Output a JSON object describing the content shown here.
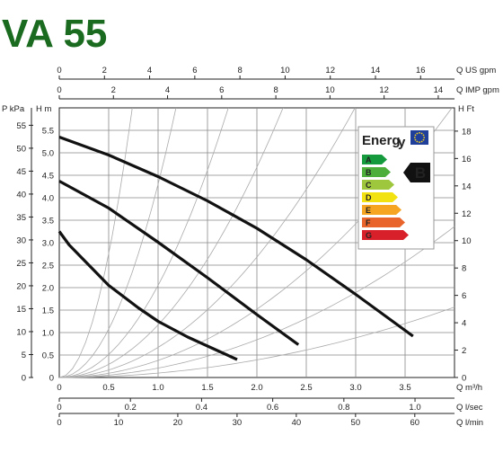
{
  "title": "VA 55",
  "colors": {
    "title": "#1a6b1f",
    "curve": "#111111",
    "grid": "#888888",
    "system_curve": "#aaaaaa"
  },
  "chart_data": {
    "type": "line",
    "title": "VA 55",
    "grid": true,
    "axes": {
      "top1": {
        "label": "Q US gpm",
        "ticks": [
          "0",
          "2",
          "4",
          "6",
          "8",
          "10",
          "12",
          "14",
          "16"
        ],
        "values": [
          0,
          2,
          4,
          6,
          8,
          10,
          12,
          14,
          16
        ],
        "max": 17.5
      },
      "top2": {
        "label": "Q IMP gpm",
        "ticks": [
          "0",
          "2",
          "4",
          "6",
          "8",
          "10",
          "12",
          "14"
        ],
        "values": [
          0,
          2,
          4,
          6,
          8,
          10,
          12,
          14
        ],
        "max": 14.6
      },
      "left_p": {
        "label": "P kPa",
        "ticks": [
          "0",
          "5",
          "10",
          "15",
          "20",
          "25",
          "30",
          "35",
          "40",
          "45",
          "50",
          "55"
        ],
        "values": [
          0,
          5,
          10,
          15,
          20,
          25,
          30,
          35,
          40,
          45,
          50,
          55
        ],
        "max": 58.8
      },
      "left_h": {
        "label": "H m",
        "ticks": [
          "0",
          "0.5",
          "1.0",
          "1.5",
          "2.0",
          "2.5",
          "3.0",
          "3.5",
          "4.0",
          "4.5",
          "5.0",
          "5.5"
        ],
        "values": [
          0,
          0.5,
          1.0,
          1.5,
          2.0,
          2.5,
          3.0,
          3.5,
          4.0,
          4.5,
          5.0,
          5.5
        ],
        "max": 6.0
      },
      "right_h": {
        "label": "H Ft",
        "ticks": [
          "0",
          "2",
          "4",
          "6",
          "8",
          "10",
          "12",
          "14",
          "16",
          "18"
        ],
        "values": [
          0,
          2,
          4,
          6,
          8,
          10,
          12,
          14,
          16,
          18
        ],
        "max": 19.7
      },
      "bottom_m3h": {
        "label": "Q m³/h",
        "ticks": [
          "0",
          "0.5",
          "1.0",
          "1.5",
          "2.0",
          "2.5",
          "3.0",
          "3.5"
        ],
        "values": [
          0,
          0.5,
          1.0,
          1.5,
          2.0,
          2.5,
          3.0,
          3.5
        ],
        "max": 4.0
      },
      "bottom_ls": {
        "label": "Q l/sec",
        "ticks": [
          "0",
          "0.2",
          "0.4",
          "0.6",
          "0.8",
          "1.0"
        ],
        "values": [
          0,
          0.2,
          0.4,
          0.6,
          0.8,
          1.0
        ],
        "max": 1.111
      },
      "bottom_lmin": {
        "label": "Q l/min",
        "ticks": [
          "0",
          "10",
          "20",
          "30",
          "40",
          "50",
          "60"
        ],
        "values": [
          0,
          10,
          20,
          30,
          40,
          50,
          60
        ],
        "max": 66.7
      }
    },
    "x_unit": "m³/h",
    "y_unit": "m",
    "series": [
      {
        "x": [
          0,
          0.5,
          1.0,
          1.5,
          2.0,
          2.5,
          3.0,
          3.58
        ],
        "y": [
          5.35,
          4.95,
          4.47,
          3.93,
          3.32,
          2.62,
          1.85,
          0.92
        ]
      },
      {
        "x": [
          0,
          0.5,
          1.0,
          1.5,
          2.0,
          2.42
        ],
        "y": [
          4.37,
          3.77,
          3.01,
          2.22,
          1.4,
          0.73
        ]
      },
      {
        "x": [
          0,
          0.1,
          0.3,
          0.5,
          0.8,
          1.0,
          1.3,
          1.6,
          1.8
        ],
        "y": [
          3.25,
          2.95,
          2.5,
          2.05,
          1.55,
          1.25,
          0.9,
          0.6,
          0.4
        ]
      }
    ],
    "system_curves_k": [
      11,
      4.3,
      2.05,
      1.17,
      0.67,
      0.38,
      0.21,
      0.098
    ],
    "energy_label": {
      "brand": "Energ",
      "letters": [
        "A",
        "B",
        "C",
        "D",
        "E",
        "F",
        "G"
      ],
      "colors": [
        "#159a3e",
        "#4daf3a",
        "#9ec73d",
        "#f3e212",
        "#f5a521",
        "#e8642a",
        "#d8202a"
      ],
      "rating": "B"
    }
  }
}
